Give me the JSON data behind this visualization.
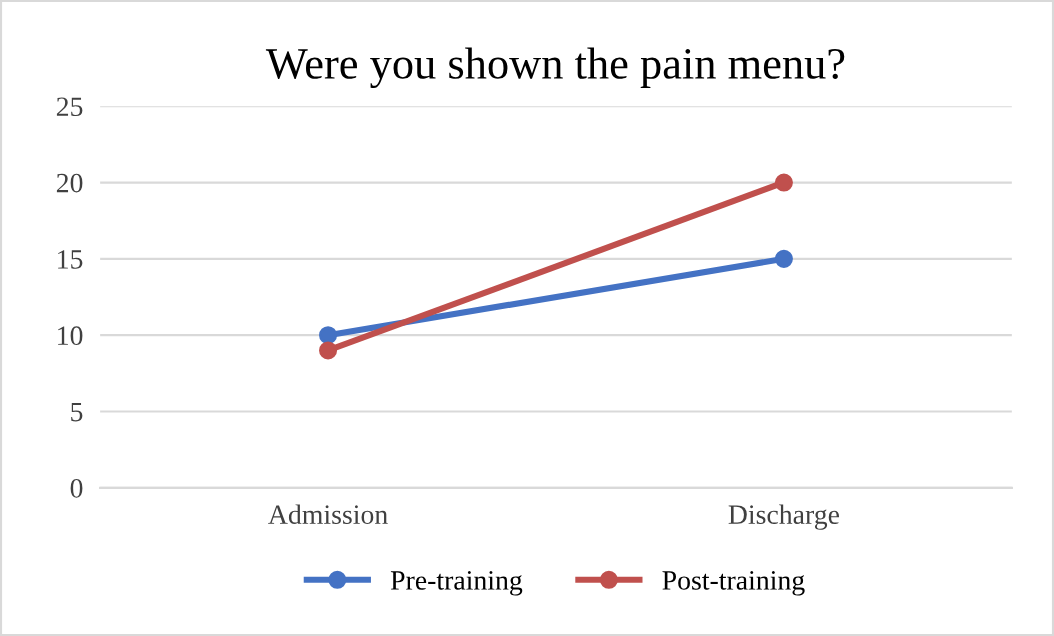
{
  "chart_data": {
    "type": "line",
    "title": "Were you shown the pain menu?",
    "categories": [
      "Admission",
      "Discharge"
    ],
    "series": [
      {
        "name": "Pre-training",
        "color": "#4472c4",
        "values": [
          10,
          15
        ]
      },
      {
        "name": "Post-training",
        "color": "#c0504d",
        "values": [
          9,
          20
        ]
      }
    ],
    "ylim": [
      0,
      25
    ],
    "yticks": [
      0,
      5,
      10,
      15,
      20,
      25
    ],
    "grid": "y",
    "legend": "bottom",
    "marker": "circle",
    "line_style": "solid"
  }
}
